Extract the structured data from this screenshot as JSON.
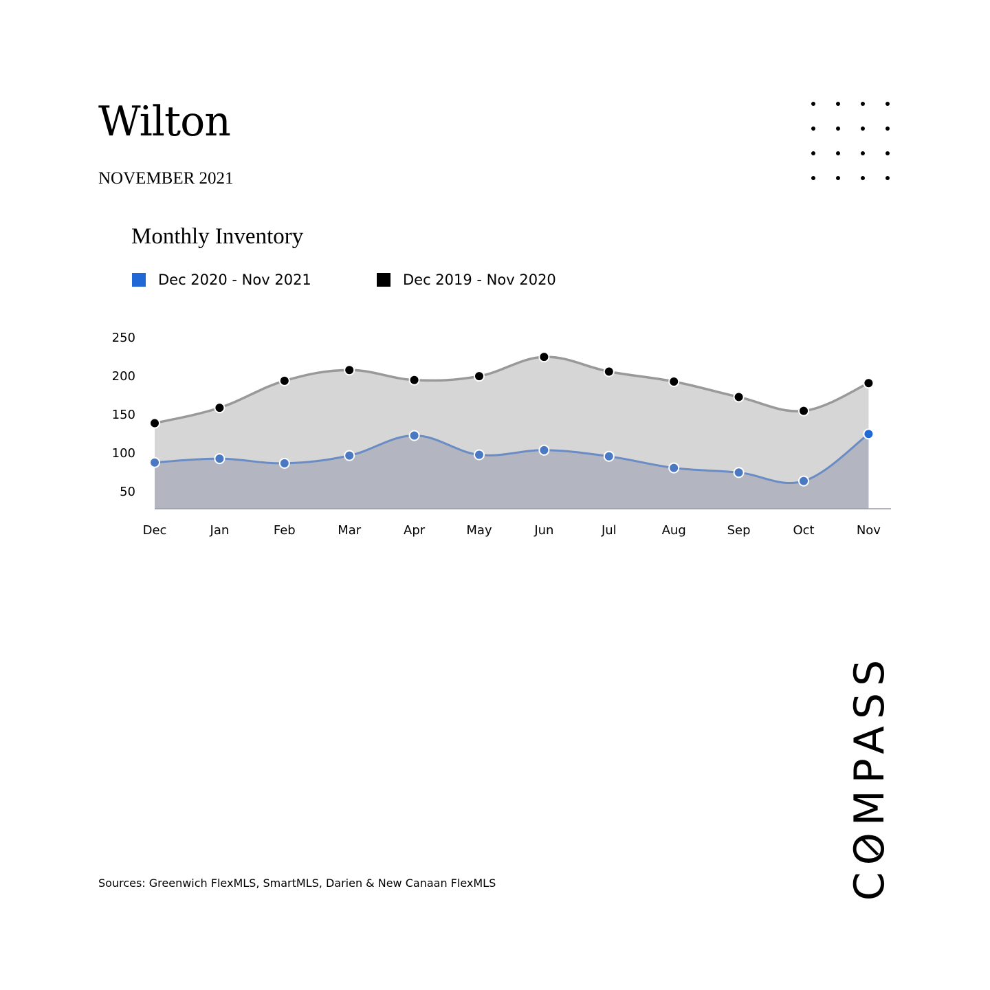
{
  "header": {
    "title": "Wilton",
    "subtitle": "NOVEMBER 2021"
  },
  "logo_text": "COMPASS",
  "sources": "Sources: Greenwich FlexMLS, SmartMLS, Darien & New Canaan FlexMLS",
  "colors": {
    "current_series": "#1f68d6",
    "previous_series": "#000000",
    "current_area": "#b3b5c0",
    "previous_area": "#d6d6d7",
    "current_line": "#6a8cc4",
    "previous_line": "#999999"
  },
  "chart_data": {
    "type": "area",
    "title": "Monthly Inventory",
    "categories": [
      "Dec",
      "Jan",
      "Feb",
      "Mar",
      "Apr",
      "May",
      "Jun",
      "Jul",
      "Aug",
      "Sep",
      "Oct",
      "Nov"
    ],
    "y_ticks": [
      250,
      200,
      150,
      100,
      50
    ],
    "ylim": [
      27,
      250
    ],
    "series": [
      {
        "name": "Dec 2020 - Nov 2021",
        "values": [
          87,
          92,
          86,
          96,
          122,
          97,
          103,
          95,
          80,
          74,
          63,
          124
        ]
      },
      {
        "name": "Dec 2019 - Nov 2020",
        "values": [
          138,
          158,
          193,
          207,
          194,
          199,
          224,
          205,
          192,
          172,
          154,
          190
        ]
      }
    ],
    "legend_position": "top-left",
    "grid": false
  }
}
